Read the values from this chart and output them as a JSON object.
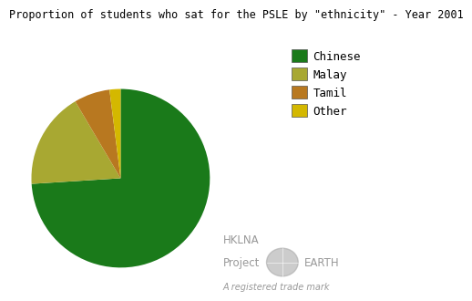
{
  "title": "Proportion of students who sat for the PSLE by \"ethnicity\" - Year 2001",
  "labels": [
    "Chinese",
    "Malay",
    "Tamil",
    "Other"
  ],
  "values": [
    74.0,
    17.5,
    6.5,
    2.0
  ],
  "colors": [
    "#1a7a1a",
    "#a8a832",
    "#b87820",
    "#d4b800"
  ],
  "startangle": 90,
  "legend_labels": [
    "Chinese",
    "Malay",
    "Tamil",
    "Other"
  ],
  "watermark_line1": "HKLNA",
  "watermark_line2": "Project",
  "watermark_line3": "EARTH",
  "watermark_line4": "A registered trade mark",
  "title_fontsize": 8.5,
  "legend_fontsize": 9,
  "background_color": "#ffffff"
}
